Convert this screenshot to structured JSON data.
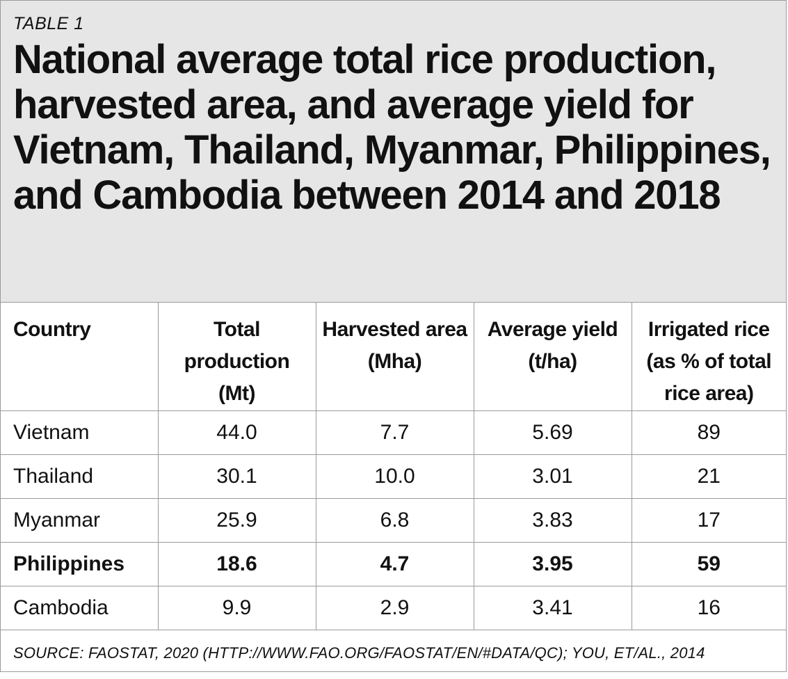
{
  "table_label": "TABLE 1",
  "title": "National average total rice production, harvested area, and average yield for Vietnam, Thailand, Myanmar, Philippines, and Cambodia between 2014 and 2018",
  "columns": [
    "Country",
    "Total production (Mt)",
    "Harvested area (Mha)",
    "Average yield (t/ha)",
    "Irrigated rice (as % of total rice area)"
  ],
  "rows": [
    {
      "country": "Vietnam",
      "production": "44.0",
      "area": "7.7",
      "yield": "5.69",
      "irrigated": "89",
      "bold": false
    },
    {
      "country": "Thailand",
      "production": "30.1",
      "area": "10.0",
      "yield": "3.01",
      "irrigated": "21",
      "bold": false
    },
    {
      "country": "Myanmar",
      "production": "25.9",
      "area": "6.8",
      "yield": "3.83",
      "irrigated": "17",
      "bold": false
    },
    {
      "country": "Philippines",
      "production": "18.6",
      "area": "4.7",
      "yield": "3.95",
      "irrigated": "59",
      "bold": true
    },
    {
      "country": "Cambodia",
      "production": "9.9",
      "area": "2.9",
      "yield": "3.41",
      "irrigated": "16",
      "bold": false
    }
  ],
  "source": "SOURCE: FAOSTAT, 2020 (HTTP://WWW.FAO.ORG/FAOSTAT/EN/#DATA/QC); YOU, ET/AL., 2014"
}
